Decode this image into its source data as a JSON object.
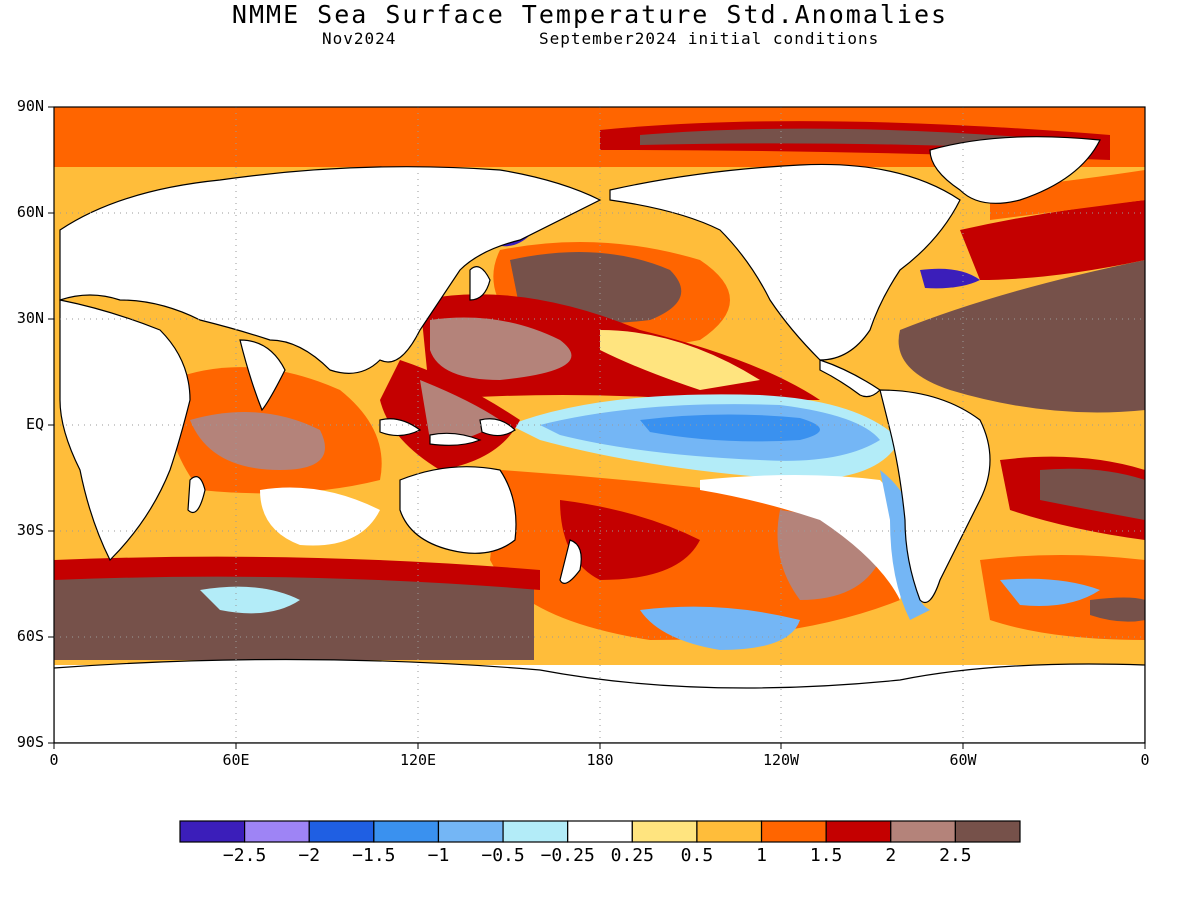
{
  "title": "NMME Sea Surface Temperature Std.Anomalies",
  "subtitle_left": "Nov2024",
  "subtitle_right": "September2024 initial conditions",
  "lat_labels": [
    "90N",
    "60N",
    "30N",
    "EQ",
    "30S",
    "60S",
    "90S"
  ],
  "lon_labels": [
    "0",
    "60E",
    "120E",
    "180",
    "120W",
    "60W",
    "0"
  ],
  "colorbar": {
    "colors": [
      "#3b1eba",
      "#9e84f5",
      "#1f5fe3",
      "#3a91ef",
      "#74b6f5",
      "#b3ecf8",
      "#ffffff",
      "#ffe47f",
      "#ffbd3a",
      "#ff6500",
      "#c40000",
      "#b4837a",
      "#76514a"
    ],
    "labels": [
      "−2.5",
      "−2",
      "−1.5",
      "−1",
      "−0.5",
      "−0.25",
      "0.25",
      "0.5",
      "1",
      "1.5",
      "2",
      "2.5"
    ]
  },
  "map_colors": {
    "land": "#ffffff",
    "coast": "#000000"
  }
}
